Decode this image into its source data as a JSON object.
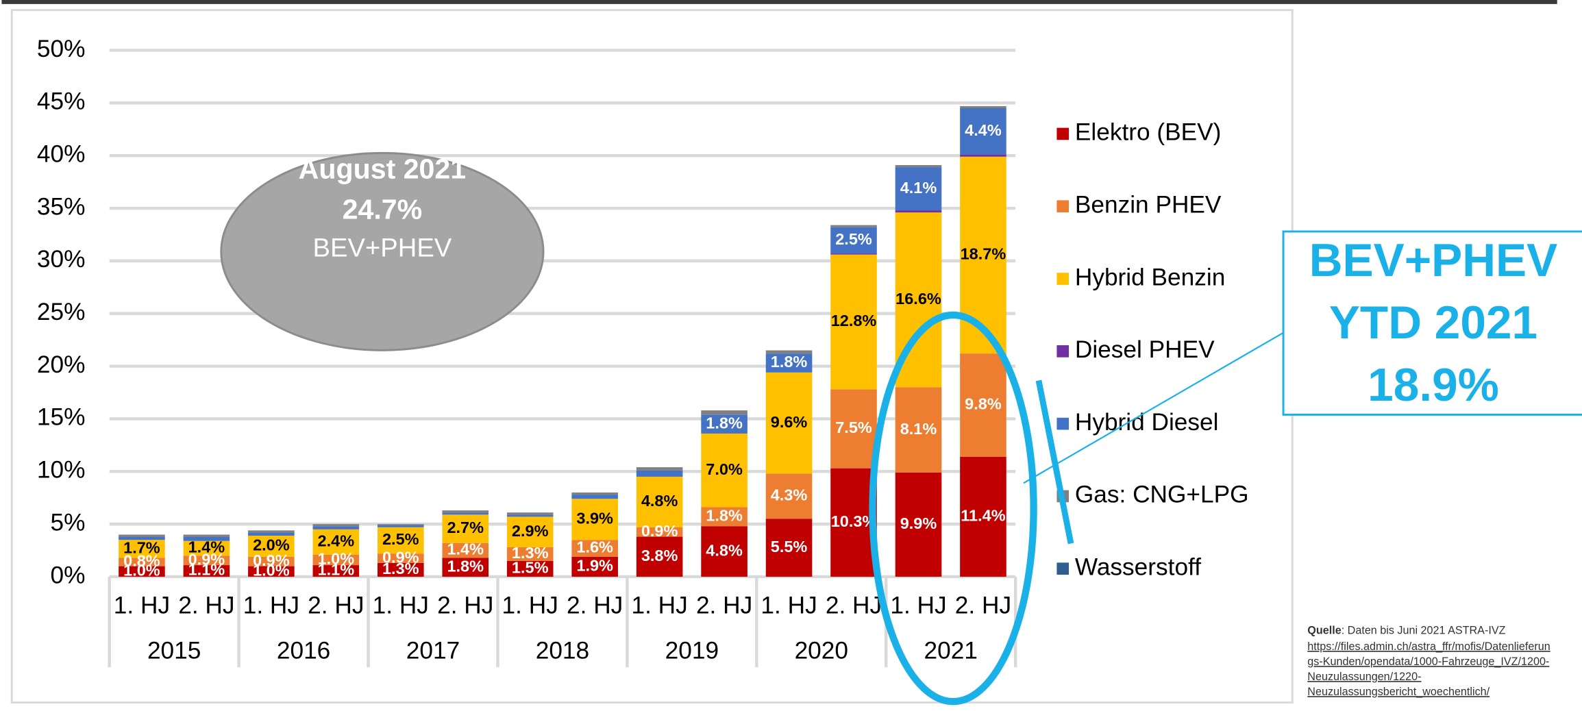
{
  "chart_data": {
    "type": "stacked_bar",
    "categories": [
      "1. HJ",
      "2. HJ",
      "1. HJ",
      "2. HJ",
      "1. HJ",
      "2. HJ",
      "1. HJ",
      "2. HJ",
      "1. HJ",
      "2. HJ",
      "1. HJ",
      "2. HJ",
      "1. HJ",
      "2. HJ"
    ],
    "groups": [
      "2015",
      "2016",
      "2017",
      "2018",
      "2019",
      "2020",
      "2021"
    ],
    "ylim": [
      0,
      50
    ],
    "yticks": [
      {
        "value": 0,
        "label": "0%"
      },
      {
        "value": 5,
        "label": "5%"
      },
      {
        "value": 10,
        "label": "10%"
      },
      {
        "value": 15,
        "label": "15%"
      },
      {
        "value": 20,
        "label": "20%"
      },
      {
        "value": 25,
        "label": "25%"
      },
      {
        "value": 30,
        "label": "30%"
      },
      {
        "value": 35,
        "label": "35%"
      },
      {
        "value": 40,
        "label": "40%"
      },
      {
        "value": 45,
        "label": "45%"
      },
      {
        "value": 50,
        "label": "50%"
      }
    ],
    "grid": true,
    "legend": "right",
    "series": [
      {
        "name": "Elektro (BEV)",
        "color": "#c00000",
        "label_color": "#ffffff",
        "values": [
          1.0,
          1.1,
          1.0,
          1.1,
          1.3,
          1.8,
          1.5,
          1.9,
          3.8,
          4.8,
          5.5,
          10.3,
          9.9,
          11.4
        ],
        "value_labels": [
          "1.0%",
          "1.1%",
          "1.0%",
          "1.1%",
          "1.3%",
          "1.8%",
          "1.5%",
          "1.9%",
          "3.8%",
          "4.8%",
          "5.5%",
          "10.3%",
          "9.9%",
          "11.4%"
        ]
      },
      {
        "name": "Benzin PHEV",
        "color": "#ed7d31",
        "label_color": "#ffffff",
        "values": [
          0.8,
          0.9,
          0.9,
          1.0,
          0.9,
          1.4,
          1.3,
          1.6,
          0.9,
          1.8,
          4.3,
          7.5,
          8.1,
          9.8
        ],
        "value_labels": [
          "0.8%",
          "0.9%",
          "0.9%",
          "1.0%",
          "0.9%",
          "1.4%",
          "1.3%",
          "1.6%",
          "0.9%",
          "1.8%",
          "4.3%",
          "7.5%",
          "8.1%",
          "9.8%"
        ]
      },
      {
        "name": "Hybrid Benzin",
        "color": "#ffc000",
        "label_color": "#000000",
        "values": [
          1.7,
          1.4,
          2.0,
          2.4,
          2.5,
          2.7,
          2.9,
          3.9,
          4.8,
          7.0,
          9.6,
          12.8,
          16.6,
          18.7
        ],
        "value_labels": [
          "1.7%",
          "1.4%",
          "2.0%",
          "2.4%",
          "2.5%",
          "2.7%",
          "2.9%",
          "3.9%",
          "4.8%",
          "7.0%",
          "9.6%",
          "12.8%",
          "16.6%",
          "18.7%"
        ]
      },
      {
        "name": "Diesel PHEV",
        "color": "#7030a0",
        "label_color": "#ffffff",
        "values": [
          0,
          0,
          0,
          0,
          0,
          0,
          0,
          0,
          0,
          0,
          0,
          0.1,
          0.2,
          0.2
        ],
        "value_labels": [
          null,
          null,
          null,
          null,
          null,
          null,
          null,
          null,
          null,
          null,
          null,
          null,
          null,
          null
        ]
      },
      {
        "name": "Hybrid Diesel",
        "color": "#4472c4",
        "label_color": "#ffffff",
        "values": [
          0.3,
          0.4,
          0.3,
          0.3,
          0.2,
          0.2,
          0.2,
          0.4,
          0.6,
          1.8,
          1.8,
          2.5,
          4.1,
          4.4
        ],
        "value_labels": [
          null,
          null,
          null,
          null,
          null,
          null,
          null,
          null,
          null,
          "1.8%",
          "1.8%",
          "2.5%",
          "4.1%",
          "4.4%"
        ]
      },
      {
        "name": "Gas: CNG+LPG",
        "color": "#808080",
        "label_color": "#ffffff",
        "values": [
          0.2,
          0.2,
          0.2,
          0.2,
          0.1,
          0.2,
          0.2,
          0.2,
          0.3,
          0.4,
          0.3,
          0.2,
          0.2,
          0.2
        ],
        "value_labels": [
          null,
          null,
          null,
          null,
          null,
          null,
          null,
          null,
          null,
          null,
          null,
          null,
          null,
          null
        ]
      },
      {
        "name": "Wasserstoff",
        "color": "#2e5f8f",
        "label_color": "#ffffff",
        "values": [
          0,
          0,
          0,
          0,
          0,
          0,
          0,
          0,
          0,
          0,
          0,
          0,
          0,
          0
        ],
        "value_labels": [
          null,
          null,
          null,
          null,
          null,
          null,
          null,
          null,
          null,
          null,
          null,
          null,
          null,
          null
        ]
      }
    ],
    "annotations": {
      "bubble": [
        "August 2021",
        "24.7%",
        "BEV+PHEV"
      ],
      "callout": [
        "BEV+PHEV",
        "YTD 2021",
        "18.9%"
      ]
    },
    "source": {
      "label": "Quelle",
      "text": ": Daten bis Juni 2021 ASTRA-IVZ",
      "link_lines": [
        "https://files.admin.ch/astra_ffr/mofis/Datenlieferun",
        "gs-Kunden/opendata/1000-Fahrzeuge_IVZ/1200-",
        "Neuzulassungen/1220-",
        "Neuzulassungsbericht_woechentlich/"
      ]
    }
  }
}
